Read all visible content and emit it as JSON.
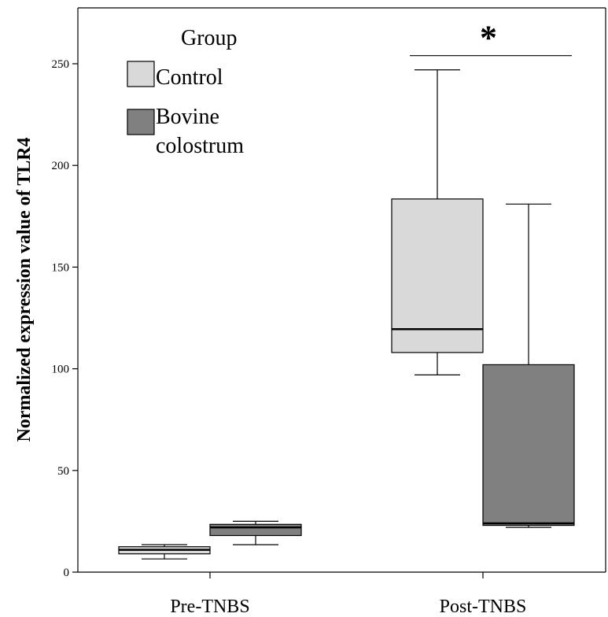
{
  "chart_data": {
    "type": "box",
    "ylabel": "Normalized expression value of TLR4",
    "xlabel": "",
    "ylim": [
      0,
      280
    ],
    "yticks": [
      0,
      50,
      100,
      150,
      200,
      250
    ],
    "categories": [
      "Pre-TNBS",
      "Post-TNBS"
    ],
    "legend": {
      "title": "Group",
      "position": "top-left",
      "entries": [
        {
          "label": "Control",
          "color": "#d9d9d9"
        },
        {
          "label": "Bovine colostrum",
          "color": "#808080"
        }
      ]
    },
    "series": [
      {
        "name": "Control",
        "color": "#d9d9d9",
        "boxes": [
          {
            "category": "Pre-TNBS",
            "min": 6.5,
            "q1": 9,
            "median": 11,
            "q3": 12.5,
            "max": 13.5
          },
          {
            "category": "Post-TNBS",
            "min": 97,
            "q1": 108,
            "median": 119.5,
            "q3": 183.5,
            "max": 247
          }
        ]
      },
      {
        "name": "Bovine colostrum",
        "color": "#808080",
        "boxes": [
          {
            "category": "Pre-TNBS",
            "min": 13.5,
            "q1": 18,
            "median": 22,
            "q3": 23.5,
            "max": 25
          },
          {
            "category": "Post-TNBS",
            "min": 22,
            "q1": 23,
            "median": 24,
            "q3": 102,
            "max": 181
          }
        ]
      }
    ],
    "annotations": [
      {
        "text": "*",
        "category": "Post-TNBS",
        "y": 254
      }
    ]
  }
}
